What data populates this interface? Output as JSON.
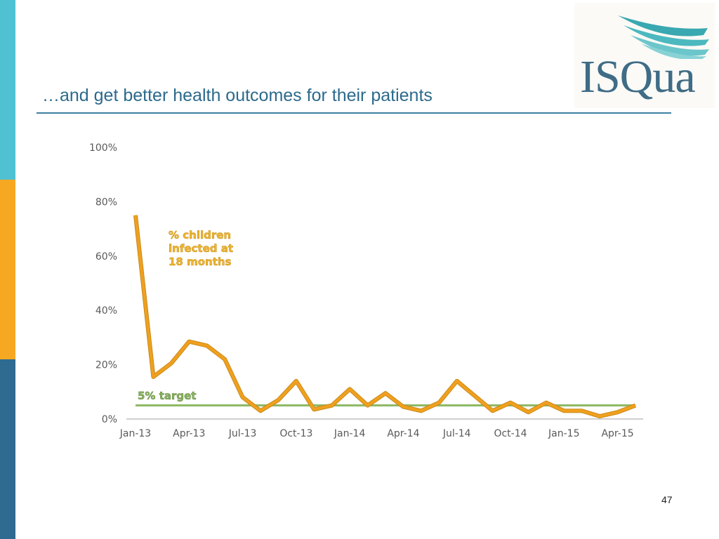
{
  "slide": {
    "title": "…and get better health outcomes for their patients",
    "page_number": "47",
    "logo_text": "ISQua"
  },
  "chart_data": {
    "type": "line",
    "title": "",
    "xlabel": "",
    "ylabel": "",
    "ylim": [
      0,
      100
    ],
    "y_ticks": [
      "0%",
      "20%",
      "40%",
      "60%",
      "80%",
      "100%"
    ],
    "y_tick_values": [
      0,
      20,
      40,
      60,
      80,
      100
    ],
    "categories": [
      "Jan-13",
      "Feb-13",
      "Mar-13",
      "Apr-13",
      "May-13",
      "Jun-13",
      "Jul-13",
      "Aug-13",
      "Sep-13",
      "Oct-13",
      "Nov-13",
      "Dec-13",
      "Jan-14",
      "Feb-14",
      "Mar-14",
      "Apr-14",
      "May-14",
      "Jun-14",
      "Jul-14",
      "Aug-14",
      "Sep-14",
      "Oct-14",
      "Nov-14",
      "Dec-14",
      "Jan-15",
      "Feb-15",
      "Mar-15",
      "Apr-15",
      "May-15"
    ],
    "x_tick_labels": [
      "Jan-13",
      "Apr-13",
      "Jul-13",
      "Oct-13",
      "Jan-14",
      "Apr-14",
      "Jul-14",
      "Oct-14",
      "Jan-15",
      "Apr-15"
    ],
    "x_tick_indices": [
      0,
      3,
      6,
      9,
      12,
      15,
      18,
      21,
      24,
      27
    ],
    "series": [
      {
        "name": "% children infected at 18 months",
        "label_lines": [
          "% children",
          "infected at",
          "18 months"
        ],
        "color": "#f0a01e",
        "values": [
          75,
          15.5,
          20.5,
          28.5,
          27,
          22,
          8,
          3,
          7,
          14,
          3.5,
          5,
          11,
          5,
          9.5,
          4.5,
          3,
          6,
          14,
          8.5,
          3,
          6,
          2.5,
          6,
          3,
          3,
          1,
          2.5,
          5
        ]
      }
    ],
    "target": {
      "label": "5% target",
      "value": 5,
      "color": "#8db863"
    }
  }
}
